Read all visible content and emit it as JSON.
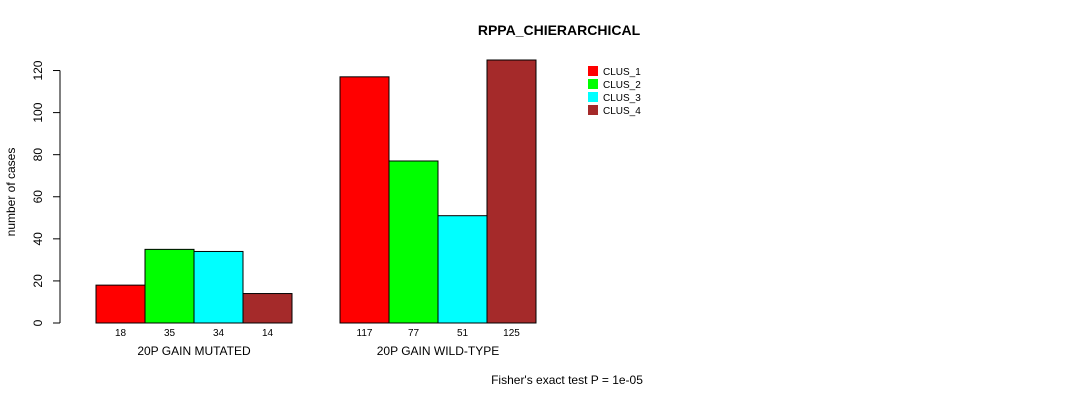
{
  "chart_data": {
    "type": "bar",
    "title": "RPPA_CHIERARCHICAL",
    "ylabel": "number of cases",
    "xlabel": "",
    "ylim": [
      0,
      125
    ],
    "yticks": [
      0,
      20,
      40,
      60,
      80,
      100,
      120
    ],
    "groups": [
      "20P GAIN MUTATED",
      "20P GAIN WILD-TYPE"
    ],
    "series": [
      {
        "name": "CLUS_1",
        "color": "#ff0000",
        "values": [
          18,
          117
        ]
      },
      {
        "name": "CLUS_2",
        "color": "#00ff00",
        "values": [
          35,
          77
        ]
      },
      {
        "name": "CLUS_3",
        "color": "#00ffff",
        "values": [
          34,
          51
        ]
      },
      {
        "name": "CLUS_4",
        "color": "#a52a2a",
        "values": [
          14,
          125
        ]
      }
    ],
    "value_labels": [
      [
        "18",
        "35",
        "34",
        "14"
      ],
      [
        "117",
        "77",
        "51",
        "125"
      ]
    ],
    "legend_position": "top-right",
    "footnote": "Fisher's exact test P = 1e-05"
  }
}
